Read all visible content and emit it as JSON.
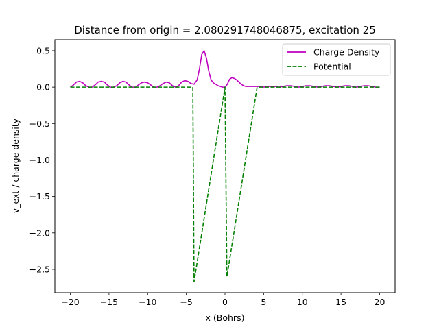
{
  "chart_data": {
    "type": "line",
    "title": "Distance from origin = 2.080291748046875, excitation 25",
    "xlabel": "x (Bohrs)",
    "ylabel": "v_ext / charge density",
    "xlim": [
      -22,
      22
    ],
    "ylim": [
      -2.82,
      0.65
    ],
    "xticks": [
      -20,
      -15,
      -10,
      -5,
      0,
      5,
      10,
      15,
      20
    ],
    "xtick_labels": [
      "−20",
      "−15",
      "−10",
      "−5",
      "0",
      "5",
      "10",
      "15",
      "20"
    ],
    "yticks": [
      0.5,
      0.0,
      -0.5,
      -1.0,
      -1.5,
      -2.0,
      -2.5
    ],
    "ytick_labels": [
      "0.5",
      "0.0",
      "−0.5",
      "−1.0",
      "−1.5",
      "−2.0",
      "−2.5"
    ],
    "grid": false,
    "legend_position": "upper-right",
    "series": [
      {
        "name": "Charge Density",
        "color": "#bf00bf",
        "style": "solid",
        "x": [
          -20,
          -19.6,
          -19.2,
          -18.8,
          -18.4,
          -18.0,
          -17.6,
          -17.2,
          -16.8,
          -16.4,
          -16.0,
          -15.6,
          -15.2,
          -14.8,
          -14.4,
          -14.0,
          -13.6,
          -13.2,
          -12.8,
          -12.4,
          -12.0,
          -11.6,
          -11.2,
          -10.8,
          -10.4,
          -10.0,
          -9.6,
          -9.2,
          -8.8,
          -8.4,
          -8.0,
          -7.6,
          -7.2,
          -6.8,
          -6.4,
          -6.0,
          -5.6,
          -5.2,
          -4.8,
          -4.4,
          -4.0,
          -3.6,
          -3.3,
          -3.0,
          -2.7,
          -2.4,
          -2.1,
          -1.8,
          -1.5,
          -1.2,
          -0.9,
          -0.6,
          -0.3,
          0.0,
          0.3,
          0.6,
          0.9,
          1.2,
          1.5,
          1.8,
          2.1,
          2.4,
          2.7,
          3.0,
          3.4,
          3.8,
          4.2,
          4.6,
          5.0,
          5.5,
          6.0,
          6.5,
          7.0,
          7.5,
          8.0,
          8.5,
          9.0,
          9.5,
          10.0,
          10.5,
          11.0,
          11.5,
          12.0,
          12.5,
          13.0,
          13.5,
          14.0,
          14.5,
          15.0,
          15.5,
          16.0,
          16.5,
          17.0,
          17.5,
          18.0,
          18.5,
          19.0,
          19.5,
          20.0
        ],
        "y": [
          0.0,
          0.03,
          0.07,
          0.08,
          0.06,
          0.02,
          0.0,
          0.0,
          0.03,
          0.07,
          0.08,
          0.07,
          0.03,
          0.0,
          0.0,
          0.02,
          0.06,
          0.08,
          0.07,
          0.03,
          0.0,
          0.0,
          0.03,
          0.06,
          0.07,
          0.06,
          0.03,
          0.0,
          0.0,
          0.02,
          0.05,
          0.07,
          0.06,
          0.02,
          0.0,
          0.02,
          0.07,
          0.09,
          0.08,
          0.05,
          0.04,
          0.1,
          0.25,
          0.45,
          0.5,
          0.4,
          0.22,
          0.1,
          0.06,
          0.04,
          0.02,
          0.01,
          0.0,
          0.0,
          0.04,
          0.11,
          0.13,
          0.12,
          0.1,
          0.07,
          0.04,
          0.02,
          0.01,
          0.01,
          0.01,
          0.01,
          0.01,
          0.01,
          0.0,
          0.01,
          0.01,
          0.01,
          0.0,
          0.01,
          0.02,
          0.02,
          0.01,
          0.0,
          0.01,
          0.02,
          0.02,
          0.01,
          0.0,
          0.01,
          0.02,
          0.02,
          0.01,
          0.0,
          0.01,
          0.02,
          0.02,
          0.01,
          0.0,
          0.01,
          0.02,
          0.02,
          0.01,
          0.0,
          0.0
        ]
      },
      {
        "name": "Potential",
        "color": "#008000",
        "style": "dashed",
        "x": [
          -20,
          -4.16,
          -4.0,
          0.0,
          0.25,
          4.16,
          20
        ],
        "y": [
          0.0,
          0.0,
          -2.67,
          0.0,
          -2.6,
          0.0,
          0.0
        ]
      }
    ]
  }
}
